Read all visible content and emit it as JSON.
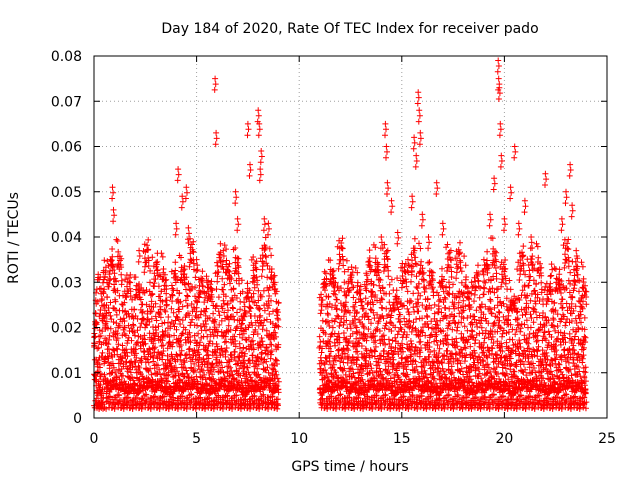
{
  "chart_data": {
    "type": "scatter",
    "title": "Day 184 of 2020, Rate Of TEC Index for receiver pado",
    "xlabel": "GPS time / hours",
    "ylabel": "ROTI / TECUs",
    "xlim": [
      0,
      25
    ],
    "ylim": [
      0,
      0.08
    ],
    "x_ticks": [
      0,
      5,
      10,
      15,
      20,
      25
    ],
    "x_tick_labels": [
      "0",
      "5",
      "10",
      "15",
      "20",
      "25"
    ],
    "y_ticks": [
      0,
      0.01,
      0.02,
      0.03,
      0.04,
      0.05,
      0.06,
      0.07,
      0.08
    ],
    "y_tick_labels": [
      "0",
      "0.01",
      "0.02",
      "0.03",
      "0.04",
      "0.05",
      "0.06",
      "0.07",
      "0.08"
    ],
    "grid": true,
    "marker": "+",
    "marker_color": "#ff0000",
    "data_gap_hours": [
      9.0,
      11.0
    ],
    "series": [
      {
        "name": "ROTI",
        "points": [
          [
            0.25,
            0.018
          ],
          [
            0.5,
            0.025
          ],
          [
            0.8,
            0.035
          ],
          [
            0.9,
            0.051
          ],
          [
            0.95,
            0.046
          ],
          [
            1.0,
            0.032
          ],
          [
            1.5,
            0.028
          ],
          [
            2.2,
            0.037
          ],
          [
            2.6,
            0.023
          ],
          [
            3.0,
            0.02
          ],
          [
            3.5,
            0.026
          ],
          [
            4.0,
            0.043
          ],
          [
            4.1,
            0.055
          ],
          [
            4.3,
            0.049
          ],
          [
            4.5,
            0.051
          ],
          [
            4.6,
            0.042
          ],
          [
            5.0,
            0.035
          ],
          [
            5.5,
            0.03
          ],
          [
            5.9,
            0.075
          ],
          [
            5.95,
            0.063
          ],
          [
            6.3,
            0.037
          ],
          [
            6.5,
            0.025
          ],
          [
            6.9,
            0.05
          ],
          [
            7.0,
            0.044
          ],
          [
            7.5,
            0.065
          ],
          [
            7.6,
            0.056
          ],
          [
            7.8,
            0.03
          ],
          [
            8.0,
            0.068
          ],
          [
            8.05,
            0.065
          ],
          [
            8.1,
            0.055
          ],
          [
            8.15,
            0.059
          ],
          [
            8.3,
            0.044
          ],
          [
            8.5,
            0.043
          ],
          [
            8.8,
            0.02
          ],
          [
            11.0,
            0.018
          ],
          [
            11.3,
            0.032
          ],
          [
            11.7,
            0.03
          ],
          [
            12.2,
            0.025
          ],
          [
            12.8,
            0.02
          ],
          [
            13.5,
            0.028
          ],
          [
            13.8,
            0.034
          ],
          [
            14.0,
            0.04
          ],
          [
            14.2,
            0.065
          ],
          [
            14.25,
            0.06
          ],
          [
            14.3,
            0.052
          ],
          [
            14.5,
            0.048
          ],
          [
            14.8,
            0.041
          ],
          [
            15.3,
            0.035
          ],
          [
            15.5,
            0.049
          ],
          [
            15.6,
            0.062
          ],
          [
            15.7,
            0.058
          ],
          [
            15.8,
            0.072
          ],
          [
            15.85,
            0.068
          ],
          [
            15.9,
            0.063
          ],
          [
            16.0,
            0.045
          ],
          [
            16.3,
            0.04
          ],
          [
            16.7,
            0.052
          ],
          [
            17.0,
            0.043
          ],
          [
            17.3,
            0.03
          ],
          [
            17.8,
            0.028
          ],
          [
            18.4,
            0.03
          ],
          [
            19.0,
            0.035
          ],
          [
            19.3,
            0.045
          ],
          [
            19.5,
            0.053
          ],
          [
            19.7,
            0.079
          ],
          [
            19.72,
            0.075
          ],
          [
            19.75,
            0.073
          ],
          [
            19.8,
            0.065
          ],
          [
            19.85,
            0.058
          ],
          [
            20.0,
            0.044
          ],
          [
            20.3,
            0.051
          ],
          [
            20.5,
            0.06
          ],
          [
            20.7,
            0.043
          ],
          [
            21.0,
            0.048
          ],
          [
            21.3,
            0.04
          ],
          [
            22.0,
            0.054
          ],
          [
            22.3,
            0.034
          ],
          [
            22.8,
            0.044
          ],
          [
            23.0,
            0.05
          ],
          [
            23.2,
            0.056
          ],
          [
            23.3,
            0.047
          ],
          [
            23.5,
            0.037
          ],
          [
            23.8,
            0.027
          ],
          [
            23.9,
            0.018
          ]
        ]
      }
    ]
  }
}
